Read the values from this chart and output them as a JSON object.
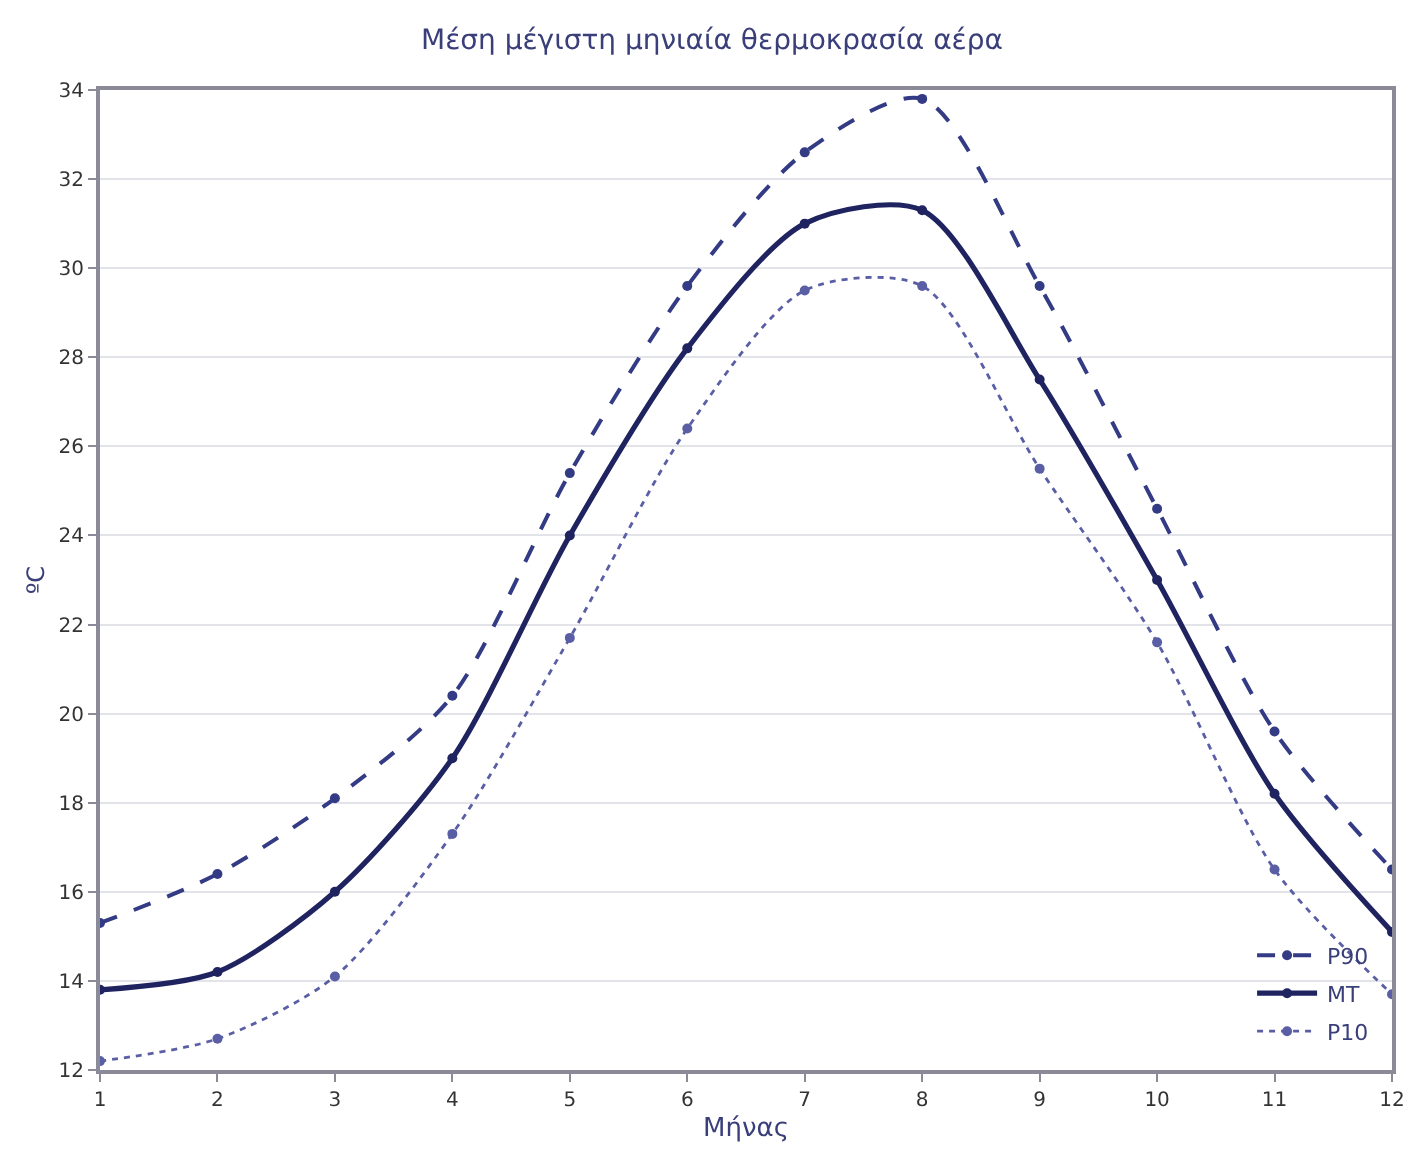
{
  "chart_data": {
    "type": "line",
    "title": "Μέση μέγιστη μηνιαία θερμοκρασία αέρα",
    "xlabel": "Μήνας",
    "ylabel": "ºC",
    "x": [
      1,
      2,
      3,
      4,
      5,
      6,
      7,
      8,
      9,
      10,
      11,
      12
    ],
    "xlim": [
      1,
      12
    ],
    "xticks": [
      1,
      2,
      3,
      4,
      5,
      6,
      7,
      8,
      9,
      10,
      11,
      12
    ],
    "ylim": [
      12,
      34
    ],
    "yticks": [
      12,
      14,
      16,
      18,
      20,
      22,
      24,
      26,
      28,
      30,
      32,
      34
    ],
    "grid": "y",
    "legend": "bottom right",
    "marker": "circle",
    "series": [
      {
        "name": "P90",
        "color": "#343b85",
        "line_style": "dashed",
        "values": [
          15.3,
          16.4,
          18.1,
          20.4,
          25.4,
          29.6,
          32.6,
          33.8,
          29.6,
          24.6,
          19.6,
          16.5
        ]
      },
      {
        "name": "MT",
        "color": "#1f2360",
        "line_style": "solid",
        "values": [
          13.8,
          14.2,
          16.0,
          19.0,
          24.0,
          28.2,
          31.0,
          31.3,
          27.5,
          23.0,
          18.2,
          15.1
        ]
      },
      {
        "name": "P10",
        "color": "#5a5fa5",
        "line_style": "dotted",
        "values": [
          12.2,
          12.7,
          14.1,
          17.3,
          21.7,
          26.4,
          29.5,
          29.6,
          25.5,
          21.6,
          16.5,
          13.7
        ]
      }
    ]
  }
}
